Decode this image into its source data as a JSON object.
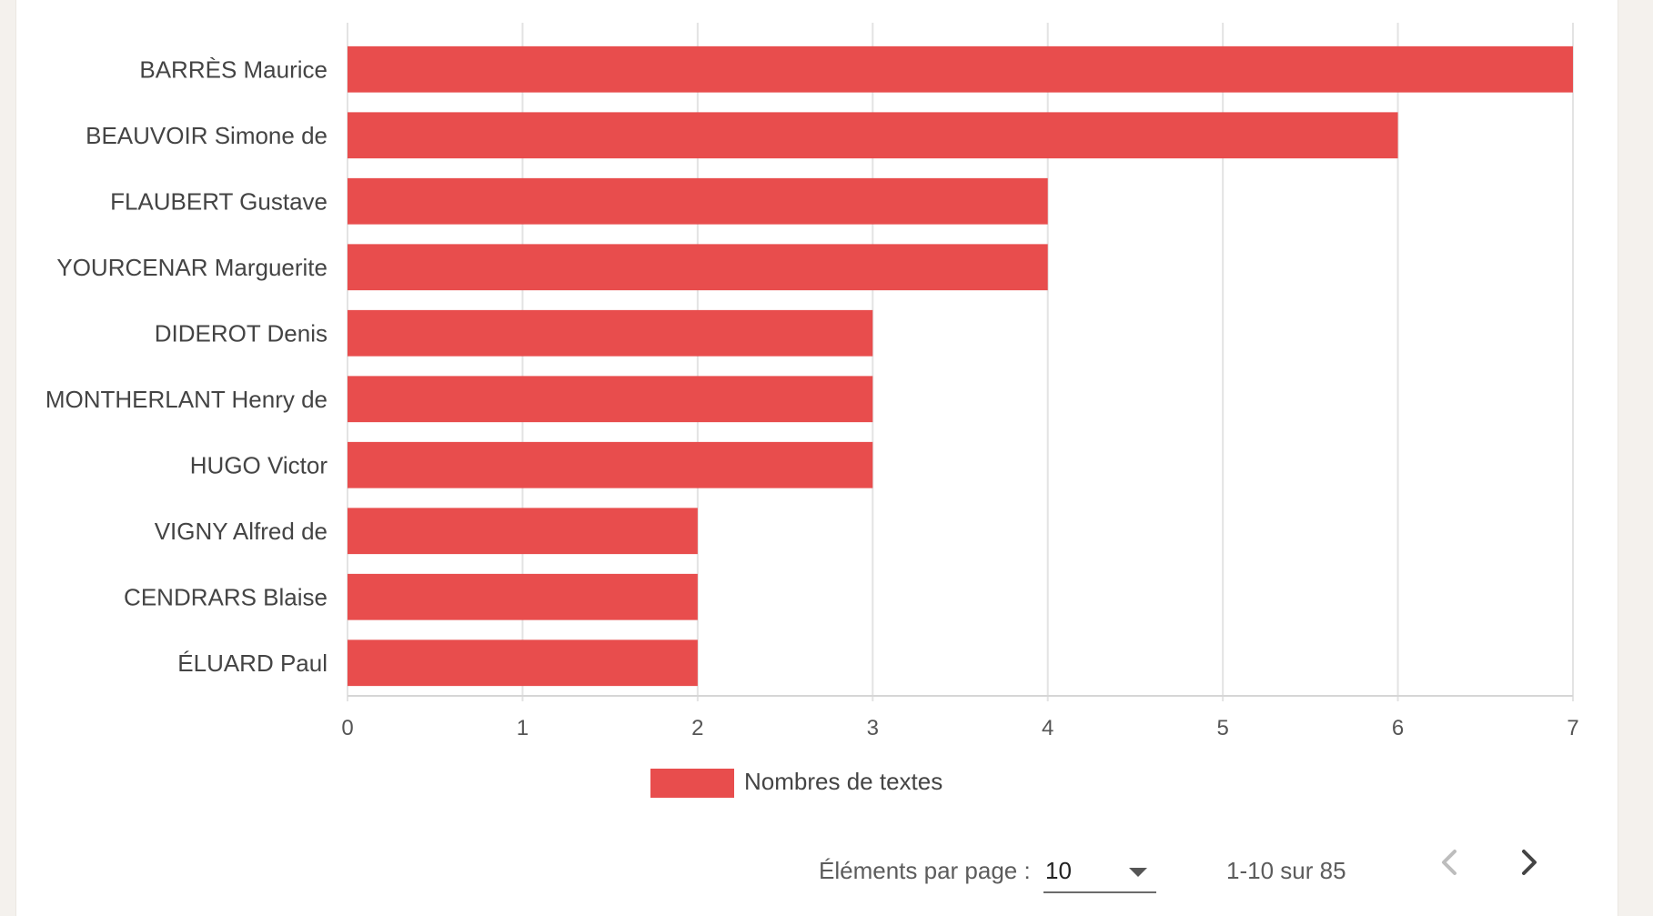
{
  "chart_data": {
    "type": "bar",
    "orientation": "horizontal",
    "categories": [
      "BARRÈS Maurice",
      "BEAUVOIR Simone de",
      "FLAUBERT Gustave",
      "YOURCENAR Marguerite",
      "DIDEROT Denis",
      "MONTHERLANT Henry de",
      "HUGO Victor",
      "VIGNY Alfred de",
      "CENDRARS Blaise",
      "ÉLUARD Paul"
    ],
    "series": [
      {
        "name": "Nombres de textes",
        "values": [
          7,
          6,
          4,
          4,
          3,
          3,
          3,
          2,
          2,
          2
        ],
        "color": "#e84d4d"
      }
    ],
    "xlim": [
      0,
      7
    ],
    "xticks": [
      "0",
      "1",
      "2",
      "3",
      "4",
      "5",
      "6",
      "7"
    ],
    "grid": true,
    "legend_position": "bottom"
  },
  "paginator": {
    "items_per_page_label": "Éléments par page :",
    "items_per_page_value": "10",
    "range_label": "1-10 sur 85"
  },
  "icons": {
    "dropdown": "chevron-down-icon",
    "previous": "chevron-left-icon",
    "next": "chevron-right-icon"
  },
  "colors": {
    "bar": "#e84d4d",
    "grid": "#e3e3e3",
    "page_background": "#f4f1ed",
    "nav_disabled": "#bdbdbd",
    "nav_enabled": "#444444"
  }
}
